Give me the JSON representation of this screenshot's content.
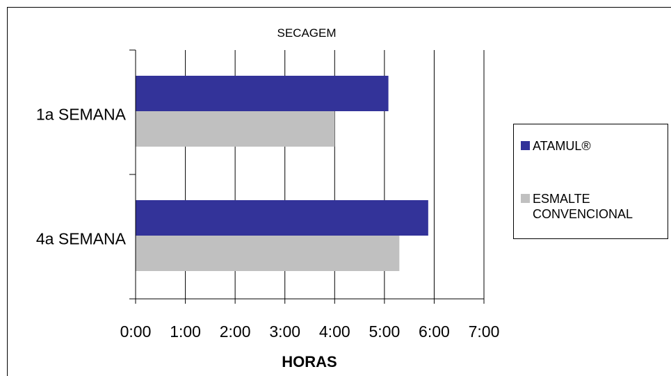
{
  "chart_data": {
    "type": "bar",
    "orientation": "horizontal",
    "title": "SECAGEM",
    "xlabel": "HORAS",
    "ylabel": "",
    "categories": [
      "1a SEMANA",
      "4a SEMANA"
    ],
    "x_ticks": [
      "0:00",
      "1:00",
      "2:00",
      "3:00",
      "4:00",
      "5:00",
      "6:00",
      "7:00"
    ],
    "xlim": [
      0,
      7
    ],
    "x_unit": "hours",
    "grid": "vertical",
    "legend_position": "right",
    "series": [
      {
        "name": "ATAMUL®",
        "color": "#333399",
        "values": [
          5.08,
          5.88
        ]
      },
      {
        "name": "ESMALTE CONVENCIONAL",
        "color": "#c0c0c0",
        "values": [
          4.0,
          5.3
        ]
      }
    ]
  }
}
